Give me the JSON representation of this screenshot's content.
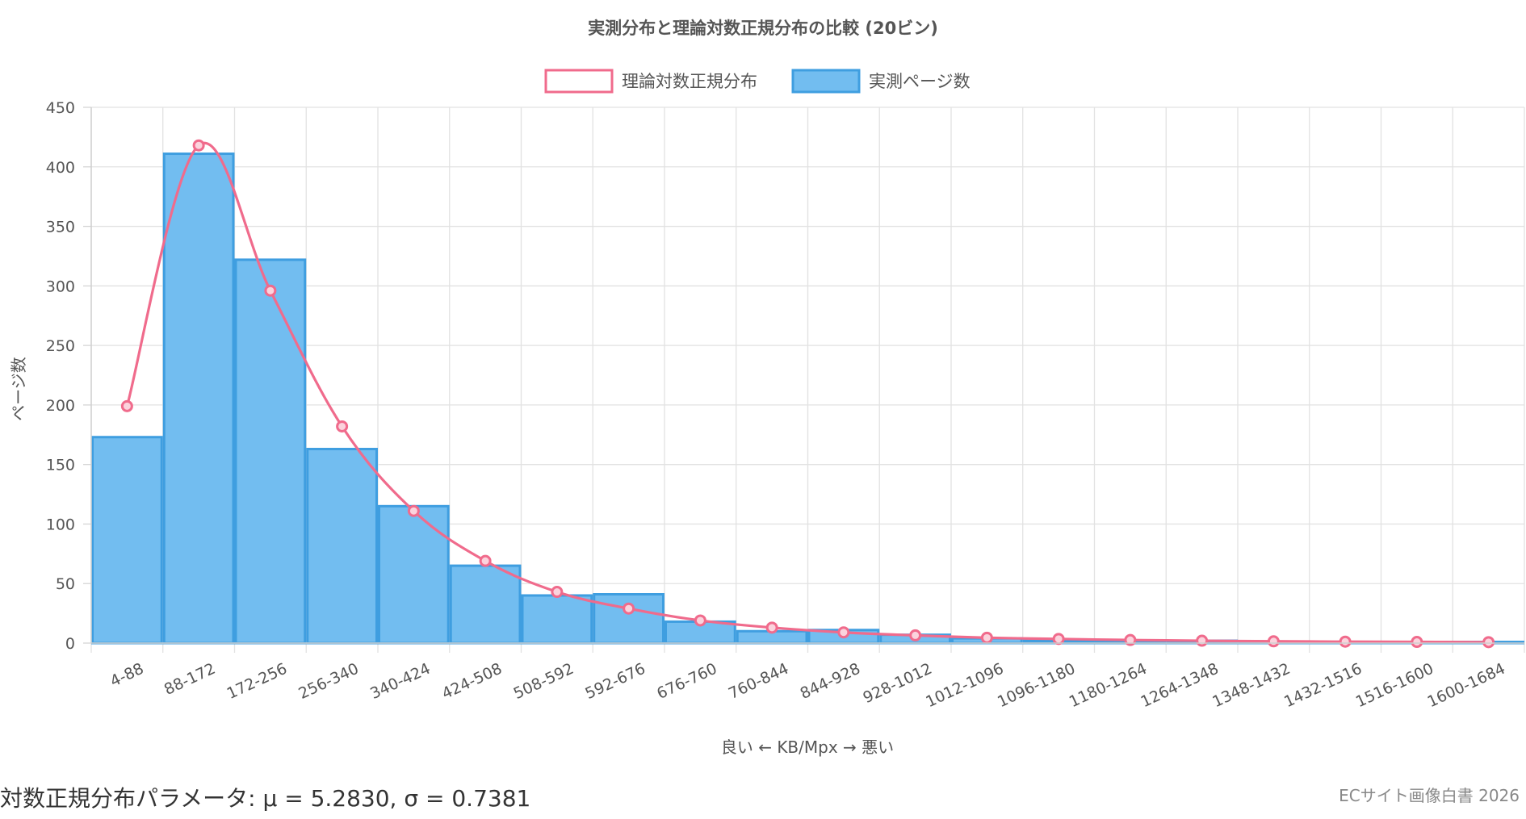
{
  "chart_data": {
    "type": "bar",
    "title": "実測分布と理論対数正規分布の比較 (20ビン)",
    "xlabel": "良い ← KB/Mpx → 悪い",
    "ylabel": "ページ数",
    "ylim": [
      0,
      450
    ],
    "yticks": [
      0,
      50,
      100,
      150,
      200,
      250,
      300,
      350,
      400,
      450
    ],
    "grid": true,
    "legend_position": "top-center",
    "categories": [
      "4-88",
      "88-172",
      "172-256",
      "256-340",
      "340-424",
      "424-508",
      "508-592",
      "592-676",
      "676-760",
      "760-844",
      "844-928",
      "928-1012",
      "1012-1096",
      "1096-1180",
      "1180-1264",
      "1264-1348",
      "1348-1432",
      "1432-1516",
      "1516-1600",
      "1600-1684"
    ],
    "series": [
      {
        "name": "理論対数正規分布",
        "type": "line",
        "color": "#f06b8c",
        "values": [
          199,
          418,
          296,
          182,
          111,
          69,
          43,
          29,
          19,
          13,
          9,
          6.5,
          4.5,
          3.5,
          2.6,
          2.0,
          1.5,
          1.2,
          1.0,
          0.8
        ]
      },
      {
        "name": "実測ページ数",
        "type": "bar",
        "color": "#3f9ee0",
        "fill": "#72bdf0",
        "values": [
          173,
          411,
          322,
          163,
          115,
          65,
          40,
          41,
          18,
          10,
          11,
          7,
          4,
          2,
          2,
          2,
          1,
          1,
          1,
          1
        ]
      }
    ]
  },
  "footer": {
    "params": "対数正規分布パラメータ: μ = 5.2830, σ = 0.7381",
    "credit": "ECサイト画像白書 2026"
  }
}
